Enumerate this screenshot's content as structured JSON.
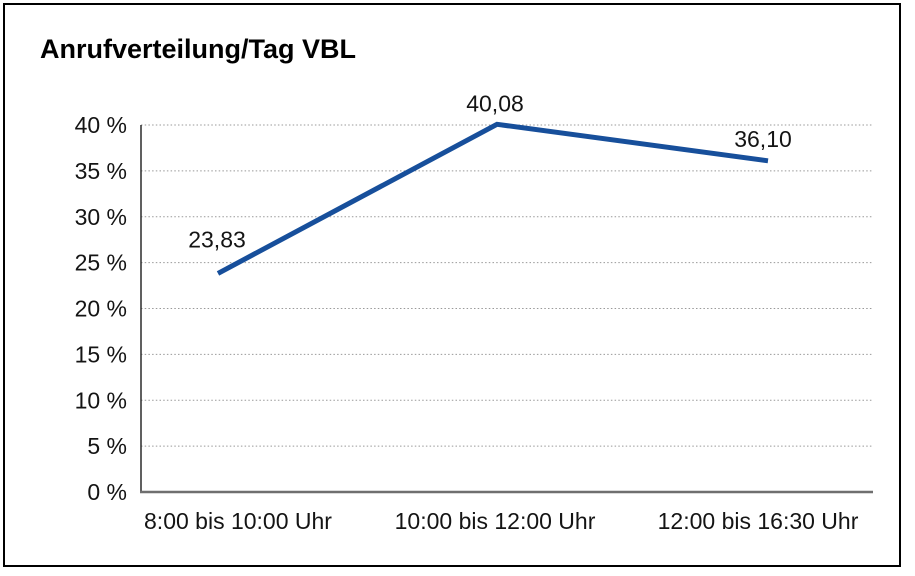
{
  "page": {
    "background": "#ffffff",
    "frame_border_color": "#000000"
  },
  "chart_data": {
    "type": "line",
    "title": "Anrufverteilung/Tag VBL",
    "categories": [
      "8:00 bis 10:00 Uhr",
      "10:00 bis 12:00 Uhr",
      "12:00 bis 16:30 Uhr"
    ],
    "values": [
      23.83,
      40.08,
      36.1
    ],
    "data_labels": [
      "23,83",
      "40,08",
      "36,10"
    ],
    "yticks": [
      0,
      5,
      10,
      15,
      20,
      25,
      30,
      35,
      40
    ],
    "ytick_labels": [
      "0 %",
      "5 %",
      "10 %",
      "15 %",
      "20 %",
      "25 %",
      "30 %",
      "35 %",
      "40 %"
    ],
    "ylim": [
      0,
      40
    ],
    "xlabel": "",
    "ylabel": "",
    "grid": "horizontal-dotted",
    "legend": "none",
    "line_color": "#174F9B",
    "gridline_color": "#999999",
    "axis_color": "#2b2b2b",
    "baseline_color": "#6f6f6f",
    "text_color": "#141414"
  }
}
